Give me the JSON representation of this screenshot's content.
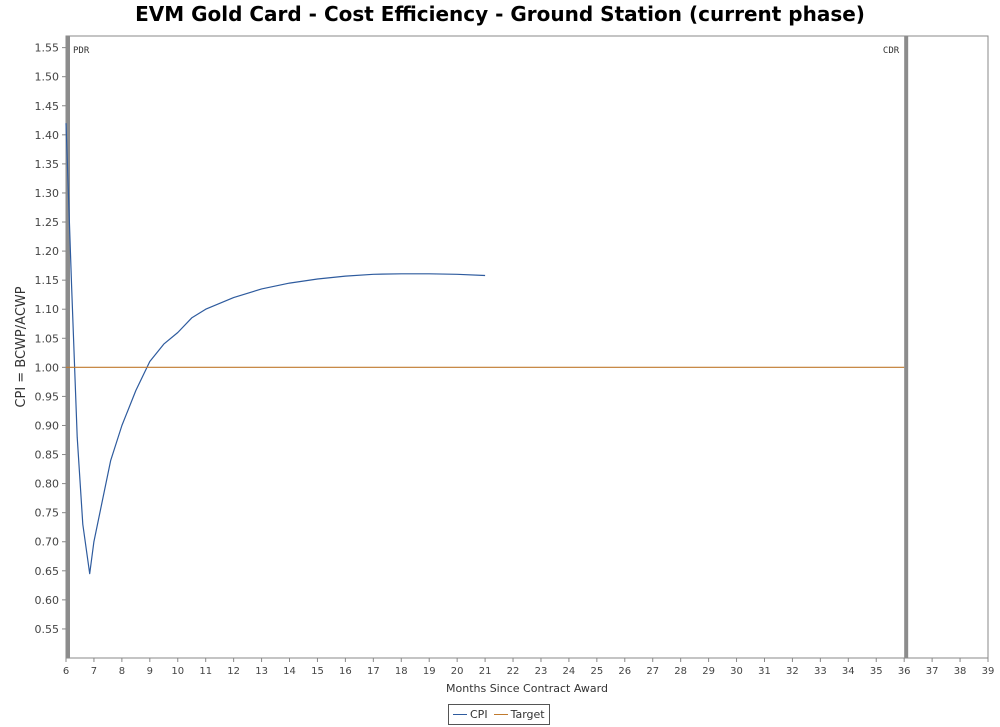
{
  "chart_data": {
    "type": "line",
    "title": "EVM Gold Card - Cost Efficiency - Ground Station (current phase)",
    "xlabel": "Months Since Contract Award",
    "ylabel": "CPI = BCWP/ACWP",
    "xlim": [
      6,
      39
    ],
    "ylim": [
      0.5,
      1.57
    ],
    "xticks": [
      6,
      7,
      8,
      9,
      10,
      11,
      12,
      13,
      14,
      15,
      16,
      17,
      18,
      19,
      20,
      21,
      22,
      23,
      24,
      25,
      26,
      27,
      28,
      29,
      30,
      31,
      32,
      33,
      34,
      35,
      36,
      37,
      38,
      39
    ],
    "yticks": [
      0.55,
      0.6,
      0.65,
      0.7,
      0.75,
      0.8,
      0.85,
      0.9,
      0.95,
      1.0,
      1.05,
      1.1,
      1.15,
      1.2,
      1.25,
      1.3,
      1.35,
      1.4,
      1.45,
      1.5,
      1.55
    ],
    "grid": false,
    "legend_position": "bottom-center",
    "series": [
      {
        "name": "CPI",
        "color": "#2e5b9e",
        "x": [
          6.0,
          6.2,
          6.4,
          6.6,
          6.85,
          7.0,
          7.3,
          7.6,
          8.0,
          8.5,
          9.0,
          9.5,
          10.0,
          10.5,
          11.0,
          12.0,
          13.0,
          14.0,
          15.0,
          16.0,
          17.0,
          18.0,
          19.0,
          20.0,
          21.0
        ],
        "y": [
          1.42,
          1.14,
          0.88,
          0.73,
          0.645,
          0.7,
          0.77,
          0.84,
          0.9,
          0.96,
          1.01,
          1.04,
          1.06,
          1.085,
          1.1,
          1.12,
          1.135,
          1.145,
          1.152,
          1.157,
          1.16,
          1.161,
          1.161,
          1.16,
          1.158
        ]
      },
      {
        "name": "Target",
        "color": "#c07a2e",
        "x": [
          6,
          36
        ],
        "y": [
          1.0,
          1.0
        ]
      }
    ],
    "markers": [
      {
        "label": "PDR",
        "x": 6
      },
      {
        "label": "CDR",
        "x": 36
      }
    ]
  }
}
